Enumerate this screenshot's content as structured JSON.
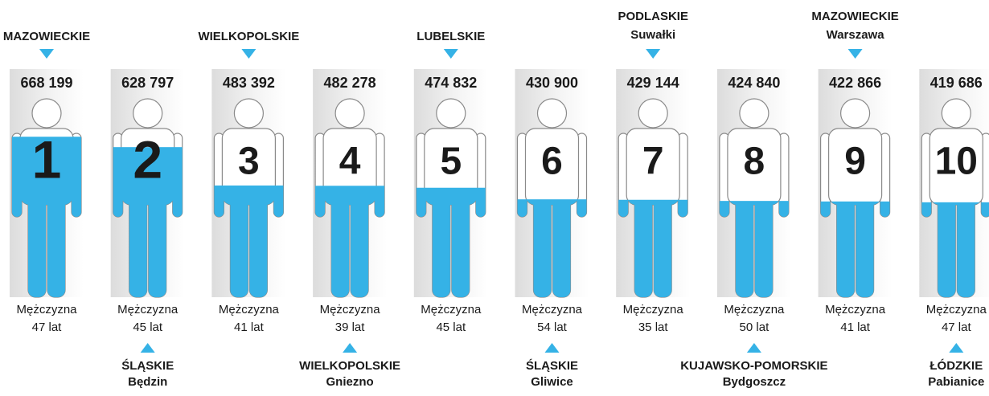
{
  "chart_data": {
    "type": "pictogram",
    "categories": [
      "1",
      "2",
      "3",
      "4",
      "5",
      "6",
      "7",
      "8",
      "9",
      "10"
    ],
    "values": [
      668199,
      628797,
      483392,
      482278,
      474832,
      430900,
      429144,
      424840,
      422866,
      419686
    ],
    "value_labels": [
      "668 199",
      "628 797",
      "483 392",
      "482 278",
      "474 832",
      "430 900",
      "429 144",
      "424 840",
      "422 866",
      "419 686"
    ],
    "places": [
      [
        "MAZOWIECKIE"
      ],
      [
        "ŚLĄSKIE",
        "Będzin"
      ],
      [
        "WIELKOPOLSKIE"
      ],
      [
        "WIELKOPOLSKIE",
        "Gniezno"
      ],
      [
        "LUBELSKIE"
      ],
      [
        "ŚLĄSKIE",
        "Gliwice"
      ],
      [
        "PODLASKIE",
        "Suwałki"
      ],
      [
        "KUJAWSKO-POMORSKIE",
        "Bydgoszcz"
      ],
      [
        "MAZOWIECKIE",
        "Warszawa"
      ],
      [
        "ŁÓDZKIE",
        "Pabianice"
      ]
    ],
    "genders": [
      "Mężczyzna",
      "Mężczyzna",
      "Mężczyzna",
      "Mężczyzna",
      "Mężczyzna",
      "Mężczyzna",
      "Mężczyzna",
      "Mężczyzna",
      "Mężczyzna",
      "Mężczyzna"
    ],
    "ages": [
      "47 lat",
      "45 lat",
      "41 lat",
      "39 lat",
      "45 lat",
      "54 lat",
      "35 lat",
      "50 lat",
      "41 lat",
      "47 lat"
    ],
    "ylim": [
      60000,
      815000
    ],
    "color": "#35b2e6"
  }
}
